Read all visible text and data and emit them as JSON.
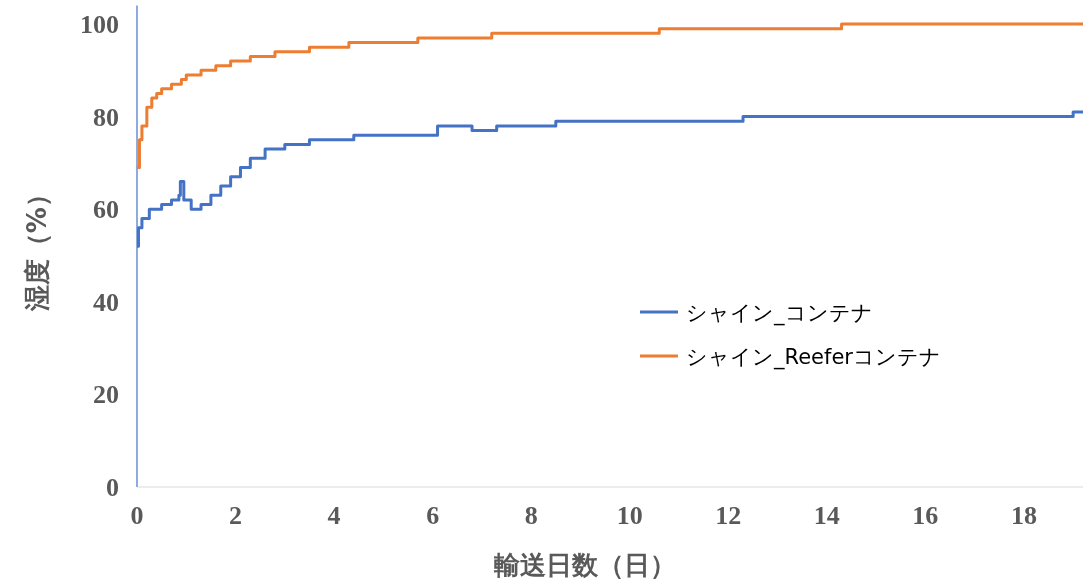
{
  "chart_data": {
    "type": "step",
    "xlabel": "輸送日数（日）",
    "ylabel": "湿度（%）",
    "xlim": [
      0,
      19.2
    ],
    "xticks": [
      0,
      2,
      4,
      6,
      8,
      10,
      12,
      14,
      16,
      18
    ],
    "ylim": [
      0,
      104
    ],
    "yticks": [
      0,
      20,
      40,
      60,
      80,
      100
    ],
    "grid": false,
    "legend": "right",
    "series": [
      {
        "name": "シャイン_コンテナ",
        "color": "#4472c4",
        "x": [
          0,
          0.03,
          0.1,
          0.25,
          0.5,
          0.7,
          0.85,
          0.88,
          0.95,
          1.1,
          1.3,
          1.5,
          1.7,
          1.9,
          2.1,
          2.3,
          2.6,
          3.0,
          3.5,
          4.4,
          6.1,
          6.8,
          7.3,
          8.5,
          12.3,
          19.0,
          19.2
        ],
        "values": [
          52,
          56,
          58,
          60,
          61,
          62,
          63,
          66,
          62,
          60,
          61,
          63,
          65,
          67,
          69,
          71,
          73,
          74,
          75,
          76,
          78,
          77,
          78,
          79,
          80,
          81,
          81
        ]
      },
      {
        "name": "シャイン_Reeferコンテナ",
        "color": "#ed7d31",
        "x": [
          0,
          0.05,
          0.1,
          0.2,
          0.3,
          0.4,
          0.5,
          0.7,
          0.9,
          1.0,
          1.3,
          1.6,
          1.9,
          2.3,
          2.8,
          3.5,
          4.3,
          5.7,
          7.2,
          10.6,
          14.3,
          19.2
        ],
        "values": [
          69,
          75,
          78,
          82,
          84,
          85,
          86,
          87,
          88,
          89,
          90,
          91,
          92,
          93,
          94,
          95,
          96,
          97,
          98,
          99,
          100,
          100
        ]
      }
    ]
  }
}
